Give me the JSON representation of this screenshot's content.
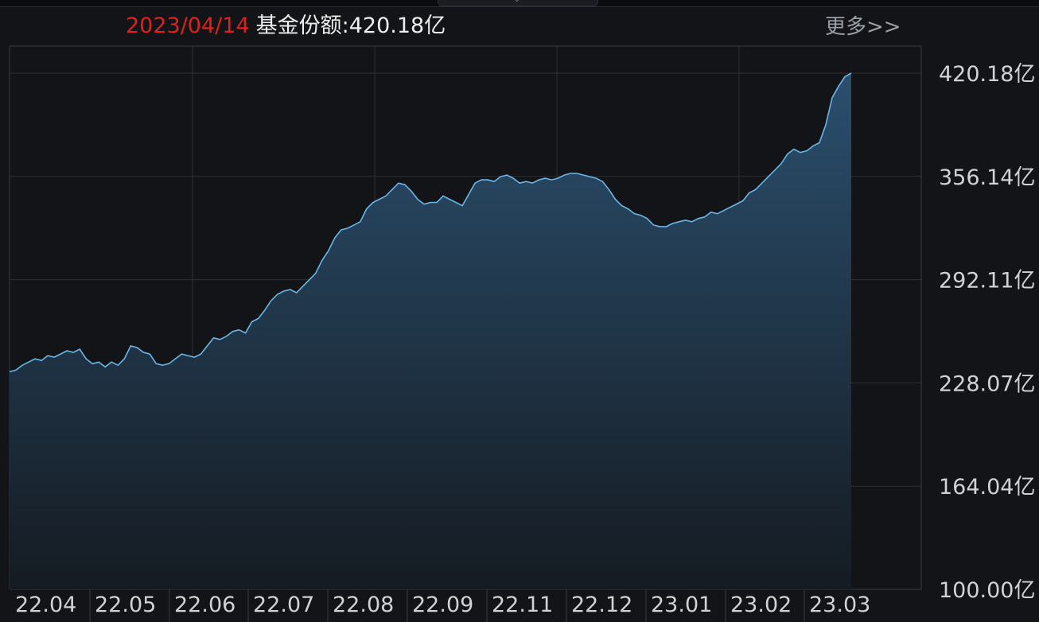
{
  "header": {
    "date": "2023/04/14",
    "label": "基金份额:420.18亿"
  },
  "more_link": "更多>>",
  "colors": {
    "date": "#e0201c",
    "line": "#6bb6e6",
    "fill_top": "#2b4f6e",
    "fill_bottom": "#151b22",
    "grid": "#2d3036",
    "frame": "#3a3d44",
    "background": "#121417"
  },
  "chart_data": {
    "type": "area",
    "title": "",
    "xlabel": "",
    "ylabel": "",
    "unit": "亿",
    "y_ticks": [
      "420.18亿",
      "356.14亿",
      "292.11亿",
      "228.07亿",
      "164.04亿",
      "100.00亿"
    ],
    "ylim": [
      100.0,
      420.18
    ],
    "x_ticks": [
      "22.04",
      "22.05",
      "22.06",
      "22.07",
      "22.08",
      "22.09",
      "22.11",
      "22.12",
      "23.01",
      "23.02",
      "23.03"
    ],
    "grid": true,
    "series": [
      {
        "values": [
          235,
          236,
          239,
          241,
          243,
          242,
          245,
          244,
          246,
          248,
          247,
          249,
          243,
          240,
          241,
          238,
          241,
          239,
          243,
          251,
          250,
          247,
          246,
          240,
          239,
          240,
          243,
          246,
          245,
          244,
          246,
          251,
          256,
          255,
          257,
          260,
          261,
          259,
          266,
          268,
          273,
          279,
          283,
          285,
          286,
          284,
          288,
          292,
          296,
          304,
          310,
          318,
          323,
          324,
          326,
          328,
          336,
          340,
          342,
          344,
          348,
          352,
          351,
          347,
          342,
          339,
          340,
          340,
          344,
          342,
          340,
          338,
          345,
          352,
          354,
          354,
          353,
          356,
          357,
          355,
          352,
          353,
          352,
          354,
          355,
          354,
          355,
          357,
          358,
          358,
          357,
          356,
          355,
          353,
          348,
          342,
          338,
          336,
          333,
          332,
          330,
          326,
          325,
          325,
          327,
          328,
          329,
          328,
          330,
          331,
          334,
          333,
          335,
          337,
          339,
          341,
          346,
          348,
          352,
          356,
          360,
          364,
          370,
          373,
          371,
          372,
          375,
          377,
          388,
          405,
          412,
          418,
          420.18
        ]
      }
    ]
  }
}
